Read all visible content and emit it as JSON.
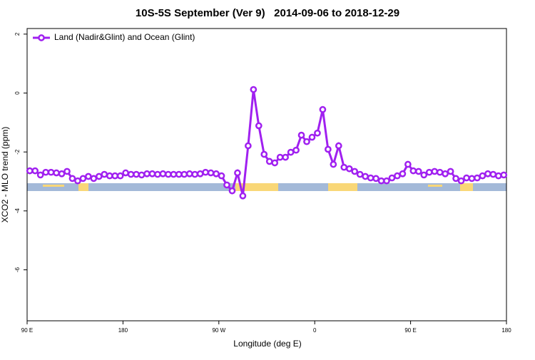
{
  "chart_data": {
    "type": "line",
    "title": "10S-5S September (Ver 9)   2014-09-06 to 2018-12-29",
    "x_label": "Longitude (deg E)",
    "y_label": "XCO2 - MLO trend (ppm)",
    "legend": "top-left",
    "xlim": [
      90,
      540
    ],
    "ylim": [
      -7.73,
      2.19
    ],
    "xticks": [
      {
        "value": 90,
        "label": "90 E"
      },
      {
        "value": 180,
        "label": "180"
      },
      {
        "value": 270,
        "label": "90 W"
      },
      {
        "value": 360,
        "label": "0"
      },
      {
        "value": 450,
        "label": "90 E"
      },
      {
        "value": 540,
        "label": "180"
      }
    ],
    "yticks": [
      2,
      0,
      -2,
      -4,
      -6
    ],
    "x": [
      92.5,
      97.5,
      102.5,
      107.5,
      112.5,
      117.5,
      122.5,
      127.5,
      132.5,
      137.5,
      142.5,
      147.5,
      152.5,
      157.5,
      162.5,
      167.5,
      172.5,
      177.5,
      182.5,
      187.5,
      192.5,
      197.5,
      202.5,
      207.5,
      212.5,
      217.5,
      222.5,
      227.5,
      232.5,
      237.5,
      242.5,
      247.5,
      252.5,
      257.5,
      262.5,
      267.5,
      272.5,
      277.5,
      282.5,
      287.5,
      292.5,
      297.5,
      302.5,
      307.5,
      312.5,
      317.5,
      322.5,
      327.5,
      332.5,
      337.5,
      342.5,
      347.5,
      352.5,
      357.5,
      362.5,
      367.5,
      372.5,
      377.5,
      382.5,
      387.5,
      392.5,
      397.5,
      402.5,
      407.5,
      412.5,
      417.5,
      422.5,
      427.5,
      432.5,
      437.5,
      442.5,
      447.5,
      452.5,
      457.5,
      462.5,
      467.5,
      472.5,
      477.5,
      482.5,
      487.5,
      492.5,
      497.5,
      502.5,
      507.5,
      512.5,
      517.5,
      522.5,
      527.5,
      532.5,
      537.5
    ],
    "series": [
      {
        "name": "Land (Nadir&Glint) and Ocean (Glint)",
        "color": "#a020f0",
        "values": [
          -2.64,
          -2.64,
          -2.78,
          -2.69,
          -2.69,
          -2.71,
          -2.74,
          -2.66,
          -2.9,
          -2.98,
          -2.9,
          -2.83,
          -2.9,
          -2.83,
          -2.76,
          -2.81,
          -2.81,
          -2.81,
          -2.71,
          -2.76,
          -2.76,
          -2.78,
          -2.74,
          -2.74,
          -2.76,
          -2.74,
          -2.76,
          -2.76,
          -2.76,
          -2.76,
          -2.74,
          -2.76,
          -2.74,
          -2.69,
          -2.71,
          -2.74,
          -2.81,
          -3.12,
          -3.32,
          -2.71,
          -3.49,
          -1.79,
          0.12,
          -1.11,
          -2.08,
          -2.32,
          -2.37,
          -2.18,
          -2.18,
          -2.01,
          -1.94,
          -1.43,
          -1.65,
          -1.5,
          -1.36,
          -0.56,
          -1.91,
          -2.42,
          -1.79,
          -2.52,
          -2.57,
          -2.66,
          -2.76,
          -2.83,
          -2.88,
          -2.9,
          -2.98,
          -2.98,
          -2.88,
          -2.81,
          -2.74,
          -2.42,
          -2.64,
          -2.66,
          -2.78,
          -2.69,
          -2.66,
          -2.69,
          -2.74,
          -2.66,
          -2.9,
          -2.98,
          -2.88,
          -2.9,
          -2.88,
          -2.81,
          -2.74,
          -2.76,
          -2.81,
          -2.78
        ]
      }
    ]
  }
}
